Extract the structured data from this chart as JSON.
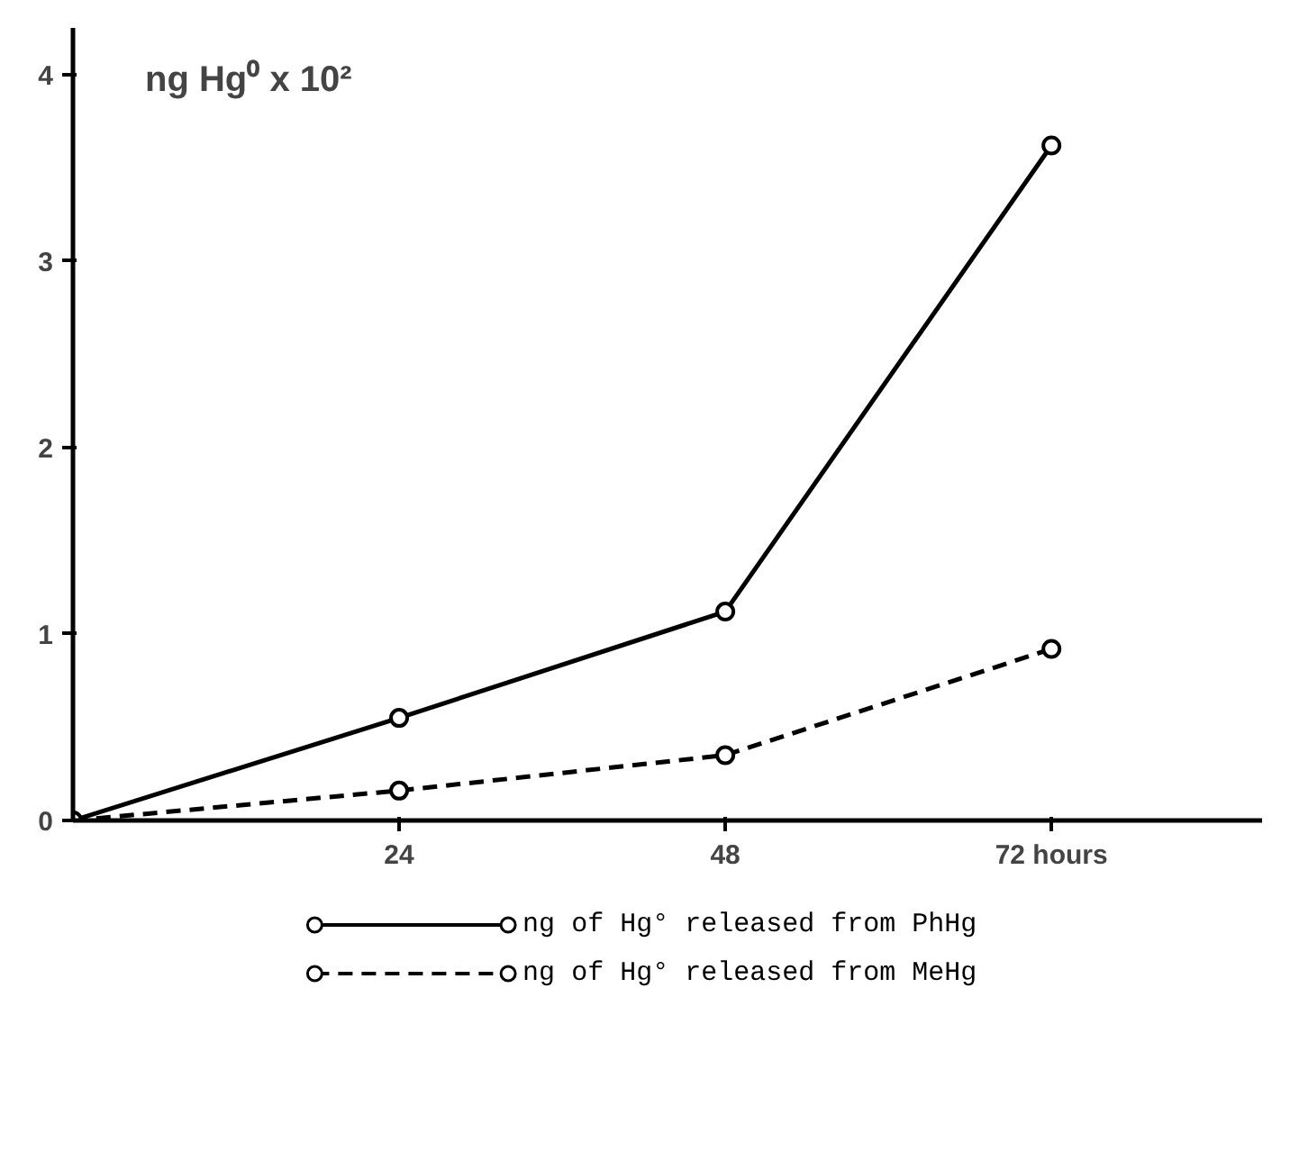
{
  "chart_data": {
    "type": "line",
    "ylabel": "ng Hg⁰ x 10²",
    "x": [
      0,
      24,
      48,
      72
    ],
    "xlim": [
      0,
      87.5
    ],
    "ylim": [
      0,
      4.25
    ],
    "xticks": [
      24,
      48,
      {
        "value": 72,
        "label": "72 hours"
      }
    ],
    "yticks": [
      0,
      1,
      2,
      3,
      4
    ],
    "series": [
      {
        "name": "ng of Hg° released from PhHg",
        "color": "#000000",
        "line_style": "solid",
        "values": [
          0,
          0.55,
          1.12,
          3.62
        ]
      },
      {
        "name": "ng of Hg° released from MeHg",
        "color": "#000000",
        "line_style": "dashed",
        "values": [
          0,
          0.16,
          0.35,
          0.92
        ]
      }
    ],
    "marker": "circle",
    "grid": false,
    "legend": "bottom"
  }
}
